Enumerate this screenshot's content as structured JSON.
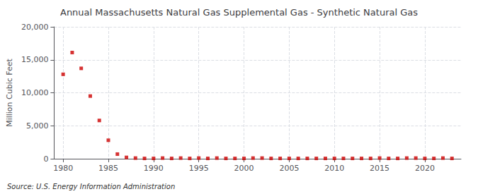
{
  "chart_data": {
    "type": "scatter",
    "title": "Annual Massachusetts Natural Gas Supplemental Gas - Synthetic Natural Gas",
    "ylabel": "Million Cubic Feet",
    "source": "Source: U.S. Energy Information Administration",
    "x": [
      1980,
      1981,
      1982,
      1983,
      1984,
      1985,
      1986,
      1987,
      1988,
      1989,
      1990,
      1991,
      1992,
      1993,
      1994,
      1995,
      1996,
      1997,
      1998,
      1999,
      2000,
      2001,
      2002,
      2003,
      2004,
      2005,
      2006,
      2007,
      2008,
      2009,
      2010,
      2011,
      2012,
      2013,
      2014,
      2015,
      2016,
      2017,
      2018,
      2019,
      2020,
      2021,
      2022,
      2023
    ],
    "values": [
      12800,
      16100,
      13700,
      9500,
      5800,
      2800,
      700,
      200,
      100,
      50,
      50,
      100,
      50,
      100,
      50,
      100,
      50,
      100,
      50,
      50,
      50,
      100,
      100,
      50,
      50,
      50,
      50,
      50,
      50,
      50,
      50,
      50,
      50,
      50,
      50,
      100,
      50,
      50,
      100,
      100,
      50,
      50,
      100,
      50
    ],
    "color": "#cc0000",
    "marker": "square",
    "xlim": [
      1979,
      2024
    ],
    "xticks": [
      1980,
      1985,
      1990,
      1995,
      2000,
      2005,
      2010,
      2015,
      2020
    ],
    "ylim": [
      0,
      20000
    ],
    "yticks": [
      0,
      {
        "value": 5000,
        "label": "5,000"
      },
      {
        "value": 10000,
        "label": "10,000"
      },
      {
        "value": 15000,
        "label": "15,000"
      },
      {
        "value": 20000,
        "label": "20,000"
      }
    ],
    "grid": true
  }
}
